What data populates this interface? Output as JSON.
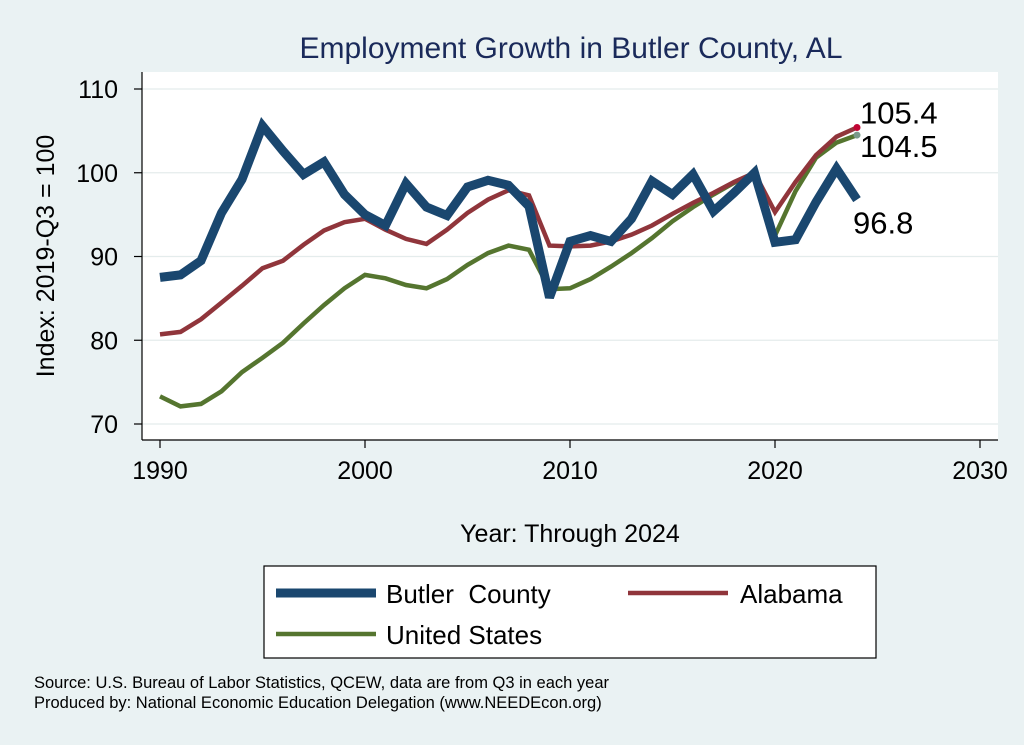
{
  "chart_data": {
    "type": "line",
    "title": "Employment Growth in Butler County, AL",
    "xlabel": "Year: Through 2024",
    "ylabel": "Index: 2019-Q3 = 100",
    "xlim": [
      1990,
      2030
    ],
    "ylim": [
      70,
      110
    ],
    "xticks": [
      1990,
      2000,
      2010,
      2020,
      2030
    ],
    "yticks": [
      70,
      80,
      90,
      100,
      110
    ],
    "grid": true,
    "x": [
      1990,
      1991,
      1992,
      1993,
      1994,
      1995,
      1996,
      1997,
      1998,
      1999,
      2000,
      2001,
      2002,
      2003,
      2004,
      2005,
      2006,
      2007,
      2008,
      2009,
      2010,
      2011,
      2012,
      2013,
      2014,
      2015,
      2016,
      2017,
      2018,
      2019,
      2020,
      2021,
      2022,
      2023,
      2024
    ],
    "series": [
      {
        "name": "Butler  County",
        "color": "#1a476f",
        "values": [
          87.5,
          87.8,
          89.5,
          95.2,
          99.2,
          105.6,
          102.6,
          99.8,
          101.3,
          97.4,
          95.0,
          93.7,
          98.7,
          95.9,
          94.9,
          98.3,
          99.1,
          98.5,
          96.0,
          85.1,
          91.8,
          92.5,
          91.8,
          94.5,
          99.0,
          97.4,
          99.8,
          95.4,
          97.6,
          100.0,
          91.7,
          92.0,
          96.5,
          100.5,
          96.8
        ],
        "end_label": "96.8"
      },
      {
        "name": "Alabama",
        "color": "#90353b",
        "values": [
          80.7,
          81.0,
          82.5,
          84.5,
          86.5,
          88.6,
          89.5,
          91.4,
          93.1,
          94.1,
          94.5,
          93.2,
          92.1,
          91.5,
          93.2,
          95.2,
          96.8,
          97.9,
          97.3,
          91.3,
          91.2,
          91.3,
          91.8,
          92.6,
          93.7,
          95.1,
          96.4,
          97.6,
          98.9,
          100.0,
          95.3,
          98.9,
          102.1,
          104.3,
          105.4
        ],
        "end_label": "105.4",
        "end_color": "#c10534"
      },
      {
        "name": "United States",
        "color": "#55752f",
        "values": [
          73.3,
          72.1,
          72.4,
          73.9,
          76.2,
          77.9,
          79.7,
          82.0,
          84.2,
          86.2,
          87.8,
          87.4,
          86.6,
          86.2,
          87.3,
          89.0,
          90.4,
          91.3,
          90.8,
          86.1,
          86.2,
          87.3,
          88.8,
          90.4,
          92.2,
          94.2,
          95.9,
          97.4,
          98.8,
          100.0,
          92.5,
          97.8,
          101.8,
          103.6,
          104.5
        ],
        "end_label": "104.5",
        "end_color": "#7a9a8a"
      }
    ],
    "legend": {
      "placement": "bottom",
      "items": [
        "Butler  County",
        "Alabama",
        "United States"
      ]
    }
  },
  "notes": {
    "source": "Source: U.S. Bureau of Labor Statistics, QCEW, data are from Q3 in each year",
    "producer": "Produced by: National Economic Education Delegation (www.NEEDEcon.org)"
  }
}
